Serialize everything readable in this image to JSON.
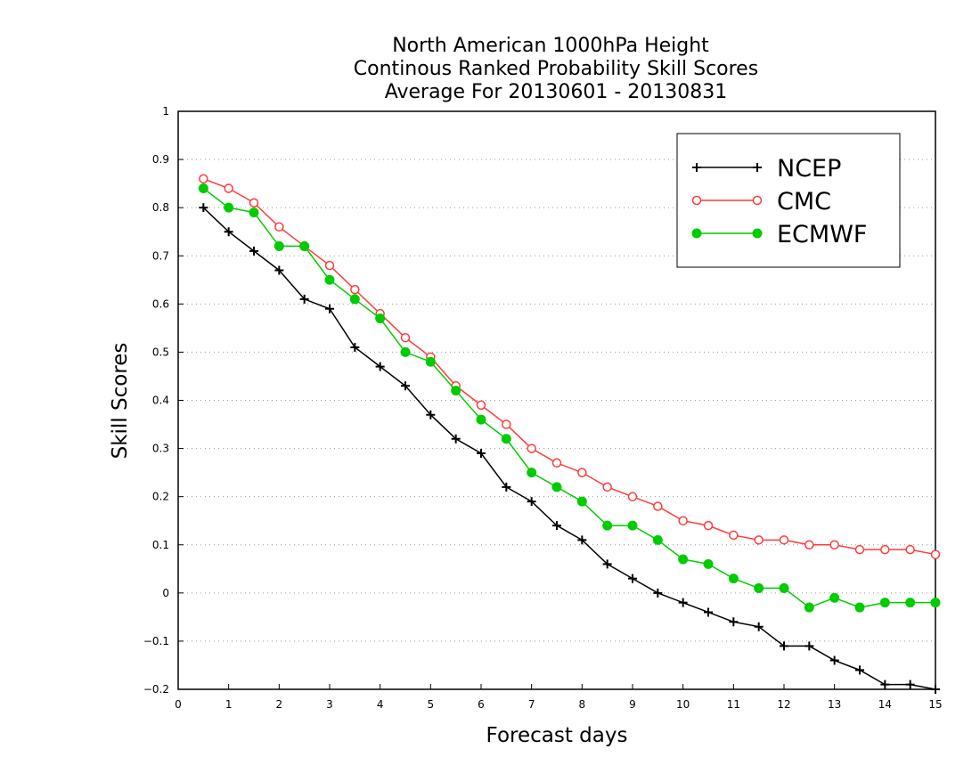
{
  "chart_data": {
    "type": "line",
    "title_lines": [
      "North American 1000hPa Height",
      "Continous Ranked Probability Skill Scores",
      "Average For 20130601 - 20130831"
    ],
    "xlabel": "Forecast days",
    "ylabel": "Skill Scores",
    "xlim": [
      0,
      15
    ],
    "ylim": [
      -0.2,
      1
    ],
    "x_ticks": [
      "0",
      "1",
      "2",
      "3",
      "4",
      "5",
      "6",
      "7",
      "8",
      "9",
      "10",
      "11",
      "12",
      "13",
      "14",
      "15"
    ],
    "y_ticks": [
      "−0.2",
      "−0.1",
      "0",
      "0.1",
      "0.2",
      "0.3",
      "0.4",
      "0.5",
      "0.6",
      "0.7",
      "0.8",
      "0.9",
      "1"
    ],
    "grid": "horizontal dotted",
    "legend_position": "top-right",
    "x": [
      0.5,
      1,
      1.5,
      2,
      2.5,
      3,
      3.5,
      4,
      4.5,
      5,
      5.5,
      6,
      6.5,
      7,
      7.5,
      8,
      8.5,
      9,
      9.5,
      10,
      10.5,
      11,
      11.5,
      12,
      12.5,
      13,
      13.5,
      14,
      14.5,
      15
    ],
    "series": [
      {
        "name": "NCEP",
        "color": "#000000",
        "marker": "plus",
        "values": [
          0.8,
          0.75,
          0.71,
          0.67,
          0.61,
          0.59,
          0.51,
          0.47,
          0.43,
          0.37,
          0.32,
          0.29,
          0.22,
          0.19,
          0.14,
          0.11,
          0.06,
          0.03,
          0.0,
          -0.02,
          -0.04,
          -0.06,
          -0.07,
          -0.11,
          -0.11,
          -0.14,
          -0.16,
          -0.19,
          -0.19,
          -0.2
        ]
      },
      {
        "name": "CMC",
        "color": "#ff3b3b",
        "marker": "open-circle",
        "values": [
          0.86,
          0.84,
          0.81,
          0.76,
          0.72,
          0.68,
          0.63,
          0.58,
          0.53,
          0.49,
          0.43,
          0.39,
          0.35,
          0.3,
          0.27,
          0.25,
          0.22,
          0.2,
          0.18,
          0.15,
          0.14,
          0.12,
          0.11,
          0.11,
          0.1,
          0.1,
          0.09,
          0.09,
          0.09,
          0.08
        ]
      },
      {
        "name": "ECMWF",
        "color": "#00cc00",
        "marker": "filled-circle",
        "values": [
          0.84,
          0.8,
          0.79,
          0.72,
          0.72,
          0.65,
          0.61,
          0.57,
          0.5,
          0.48,
          0.42,
          0.36,
          0.32,
          0.25,
          0.22,
          0.19,
          0.14,
          0.14,
          0.11,
          0.07,
          0.06,
          0.03,
          0.01,
          0.01,
          -0.03,
          -0.01,
          -0.03,
          -0.02,
          -0.02,
          -0.02
        ]
      }
    ]
  }
}
